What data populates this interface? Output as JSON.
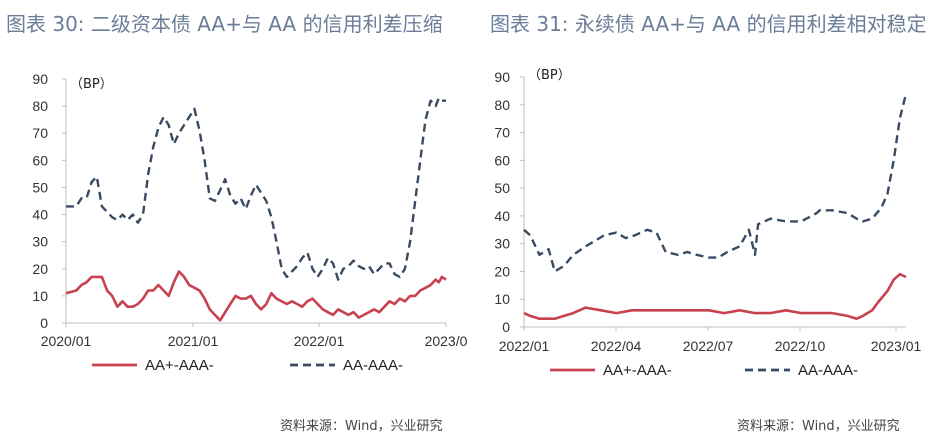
{
  "titles": {
    "left": "图表 30: 二级资本债 AA+与 AA 的信用利差压缩",
    "right": "图表 31: 永续债 AA+与 AA 的信用利差相对稳定"
  },
  "sources": {
    "left": "资料来源：Wind，兴业研究",
    "right": "资料来源：Wind，兴业研究"
  },
  "colors": {
    "aa_plus": "#c8414f",
    "aa": "#3a4a63"
  },
  "chart_data": [
    {
      "type": "line",
      "title": "图表 30: 二级资本债 AA+与 AA 的信用利差压缩",
      "unit_label": "（BP）",
      "x_ticks": [
        "2020/01",
        "2021/01",
        "2022/01",
        "2023/0"
      ],
      "x_range": [
        0,
        37
      ],
      "ylim": [
        0,
        90
      ],
      "y_ticks": [
        0,
        10,
        20,
        30,
        40,
        50,
        60,
        70,
        80,
        90
      ],
      "legend": {
        "position": "bottom",
        "entries": [
          "AA+-AAA-",
          "AA-AAA-"
        ]
      },
      "series": [
        {
          "name": "AA+-AAA-",
          "style": "solid",
          "x": [
            0,
            1,
            1.5,
            2,
            2.5,
            3,
            3.5,
            4,
            4.5,
            5,
            5.5,
            6,
            6.5,
            7,
            7.5,
            8,
            8.5,
            9,
            9.5,
            10,
            10.5,
            11,
            11.5,
            12,
            12.5,
            13,
            13.5,
            14,
            14.5,
            15,
            15.5,
            16,
            16.5,
            17,
            17.5,
            18,
            18.5,
            19,
            19.5,
            20,
            20.5,
            21,
            21.5,
            22,
            22.5,
            23,
            23.5,
            24,
            24.5,
            25,
            25.5,
            26,
            26.5,
            27,
            27.5,
            28,
            28.5,
            29,
            29.5,
            30,
            30.5,
            31,
            31.5,
            32,
            32.5,
            33,
            33.5,
            34,
            34.5,
            35,
            35.5,
            36,
            36.3,
            36.6,
            37
          ],
          "values": [
            11,
            12,
            14,
            15,
            17,
            17,
            17,
            12,
            10,
            6,
            8,
            6,
            6,
            7,
            9,
            12,
            12,
            14,
            12,
            10,
            15,
            19,
            17,
            14,
            13,
            12,
            9,
            5,
            3,
            1,
            4,
            7,
            10,
            9,
            9,
            10,
            7,
            5,
            7,
            11,
            9,
            8,
            7,
            8,
            7,
            6,
            8,
            9,
            7,
            5,
            4,
            3,
            5,
            4,
            3,
            4,
            2,
            3,
            4,
            5,
            4,
            6,
            8,
            7,
            9,
            8,
            10,
            10,
            12,
            13,
            14,
            16,
            15,
            17,
            16
          ]
        },
        {
          "name": "AA-AAA-",
          "style": "dashed",
          "x": [
            0,
            1,
            1.5,
            2,
            2.5,
            3,
            3.5,
            4,
            4.5,
            5,
            5.5,
            6,
            6.5,
            7,
            7.5,
            8,
            8.5,
            9,
            9.5,
            10,
            10.5,
            11,
            11.5,
            12,
            12.5,
            13,
            13.5,
            14,
            14.5,
            15,
            15.5,
            16,
            16.5,
            17,
            17.5,
            18,
            18.5,
            19,
            19.5,
            20,
            20.5,
            21,
            21.5,
            22,
            22.5,
            23,
            23.5,
            24,
            24.5,
            25,
            25.5,
            26,
            26.5,
            27,
            27.5,
            28,
            28.5,
            29,
            29.5,
            30,
            30.5,
            31,
            31.5,
            32,
            32.5,
            33,
            33.5,
            34,
            34.5,
            35,
            35.5,
            36,
            36.3,
            36.6,
            37
          ],
          "values": [
            43,
            43,
            46,
            46,
            52,
            54,
            43,
            41,
            39,
            38,
            40,
            38,
            40,
            37,
            40,
            55,
            65,
            72,
            76,
            73,
            66,
            70,
            73,
            76,
            79,
            71,
            60,
            46,
            45,
            49,
            53,
            47,
            44,
            46,
            42,
            47,
            51,
            48,
            45,
            39,
            30,
            20,
            17,
            19,
            21,
            24,
            26,
            20,
            17,
            20,
            24,
            22,
            16,
            20,
            21,
            23,
            21,
            20,
            21,
            18,
            20,
            22,
            22,
            18,
            17,
            20,
            30,
            45,
            60,
            75,
            82,
            80,
            83,
            82,
            82
          ]
        }
      ]
    },
    {
      "type": "line",
      "title": "图表 31: 永续债 AA+与 AA 的信用利差相对稳定",
      "unit_label": "（BP）",
      "x_ticks": [
        "2022/01",
        "2022/04",
        "2022/07",
        "2022/10",
        "2023/01"
      ],
      "x_range": [
        0,
        12.4
      ],
      "ylim": [
        0,
        90
      ],
      "y_ticks": [
        0,
        10,
        20,
        30,
        40,
        50,
        60,
        70,
        80,
        90
      ],
      "legend": {
        "position": "bottom",
        "entries": [
          "AA+-AAA-",
          "AA-AAA-"
        ]
      },
      "series": [
        {
          "name": "AA+-AAA-",
          "style": "solid",
          "x": [
            0,
            0.2,
            0.5,
            1,
            1.3,
            1.6,
            2,
            2.5,
            3,
            3.5,
            4,
            4.5,
            5,
            5.5,
            6,
            6.5,
            7,
            7.5,
            8,
            8.5,
            9,
            9.5,
            10,
            10.5,
            10.8,
            11,
            11.3,
            11.5,
            11.8,
            12,
            12.2,
            12.4
          ],
          "values": [
            5,
            4,
            3,
            3,
            4,
            5,
            7,
            6,
            5,
            6,
            6,
            6,
            6,
            6,
            6,
            5,
            6,
            5,
            5,
            6,
            5,
            5,
            5,
            4,
            3,
            4,
            6,
            9,
            13,
            17,
            19,
            18
          ]
        },
        {
          "name": "AA-AAA-",
          "style": "dashed",
          "x": [
            0,
            0.2,
            0.5,
            0.8,
            1,
            1.3,
            1.6,
            2,
            2.3,
            2.6,
            3,
            3.3,
            3.6,
            4,
            4.3,
            4.6,
            5,
            5.3,
            5.6,
            6,
            6.3,
            6.6,
            7,
            7.3,
            7.5,
            7.6,
            8,
            8.5,
            9,
            9.5,
            9.6,
            10,
            10.5,
            10.8,
            11,
            11.3,
            11.6,
            11.8,
            12,
            12.2,
            12.4
          ],
          "values": [
            35,
            33,
            26,
            28,
            20,
            22,
            26,
            29,
            31,
            33,
            34,
            32,
            33,
            35,
            34,
            27,
            26,
            27,
            26,
            25,
            25,
            27,
            29,
            35,
            26,
            37,
            39,
            38,
            38,
            41,
            42,
            42,
            41,
            39,
            38,
            39,
            43,
            48,
            60,
            75,
            84
          ]
        }
      ]
    }
  ]
}
